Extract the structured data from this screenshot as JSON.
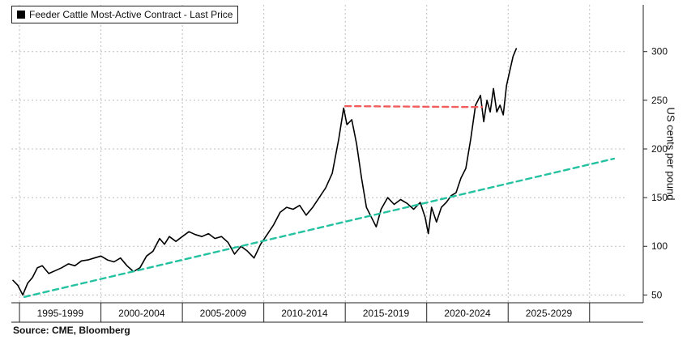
{
  "chart_data": {
    "type": "line",
    "title": "",
    "legend": {
      "label": "Feeder Cattle Most-Active Contract - Last Price",
      "placement": "top-left",
      "color": "#000000"
    },
    "source": "Source: CME, Bloomberg",
    "ylabel": "US cents per pound",
    "yaxis_side": "right",
    "ylim": [
      42,
      348
    ],
    "yticks": [
      50,
      100,
      150,
      200,
      250,
      300
    ],
    "xlim": [
      1994.5,
      2032.2
    ],
    "period_labels": [
      {
        "label": "1995-1999",
        "center": 1997.5
      },
      {
        "label": "2000-2004",
        "center": 2002.5
      },
      {
        "label": "2005-2009",
        "center": 2007.5
      },
      {
        "label": "2010-2014",
        "center": 2012.5
      },
      {
        "label": "2015-2019",
        "center": 2017.5
      },
      {
        "label": "2020-2024",
        "center": 2022.5
      },
      {
        "label": "2025-2029",
        "center": 2027.5
      }
    ],
    "period_boundaries": [
      1995,
      2000,
      2005,
      2010,
      2015,
      2020,
      2025,
      2030
    ],
    "grid": true,
    "series": [
      {
        "name": "Feeder Cattle Most-Active Contract - Last Price",
        "color": "#000000",
        "x": [
          1994.6,
          1994.9,
          1995.2,
          1995.5,
          1995.8,
          1996.1,
          1996.4,
          1996.8,
          1997.2,
          1997.6,
          1998.0,
          1998.4,
          1998.8,
          1999.2,
          1999.6,
          2000.0,
          2000.4,
          2000.8,
          2001.2,
          2001.6,
          2002.0,
          2002.4,
          2002.8,
          2003.2,
          2003.6,
          2003.9,
          2004.2,
          2004.6,
          2005.0,
          2005.4,
          2005.8,
          2006.2,
          2006.6,
          2007.0,
          2007.4,
          2007.8,
          2008.2,
          2008.6,
          2009.0,
          2009.4,
          2009.8,
          2010.2,
          2010.6,
          2011.0,
          2011.4,
          2011.8,
          2012.2,
          2012.6,
          2013.0,
          2013.4,
          2013.8,
          2014.2,
          2014.6,
          2014.9,
          2015.1,
          2015.4,
          2015.7,
          2016.0,
          2016.3,
          2016.6,
          2016.9,
          2017.2,
          2017.6,
          2018.0,
          2018.4,
          2018.8,
          2019.2,
          2019.6,
          2019.9,
          2020.1,
          2020.3,
          2020.6,
          2020.9,
          2021.2,
          2021.5,
          2021.8,
          2022.1,
          2022.4,
          2022.7,
          2023.0,
          2023.3,
          2023.5,
          2023.7,
          2023.9,
          2024.1,
          2024.3,
          2024.5,
          2024.7,
          2024.9,
          2025.1,
          2025.3,
          2025.5
        ],
        "y": [
          65,
          60,
          50,
          62,
          68,
          78,
          80,
          72,
          75,
          78,
          82,
          80,
          85,
          86,
          88,
          90,
          86,
          84,
          88,
          80,
          74,
          78,
          90,
          95,
          108,
          102,
          110,
          105,
          110,
          115,
          112,
          110,
          113,
          108,
          110,
          104,
          92,
          100,
          95,
          88,
          102,
          112,
          122,
          135,
          140,
          138,
          142,
          132,
          140,
          150,
          160,
          175,
          210,
          242,
          225,
          230,
          205,
          170,
          140,
          130,
          120,
          138,
          150,
          143,
          148,
          144,
          138,
          145,
          130,
          113,
          140,
          125,
          140,
          145,
          152,
          155,
          170,
          180,
          210,
          245,
          255,
          228,
          250,
          238,
          262,
          238,
          245,
          235,
          265,
          280,
          295,
          303
        ]
      },
      {
        "name": "",
        "style": "dashed",
        "color": "#24C2A0",
        "x": [
          1995.3,
          2031.5
        ],
        "y": [
          48,
          190
        ]
      },
      {
        "name": "",
        "style": "dashed",
        "color": "#F25C5C",
        "x": [
          2015.0,
          2023.4
        ],
        "y": [
          244,
          243
        ]
      }
    ]
  }
}
